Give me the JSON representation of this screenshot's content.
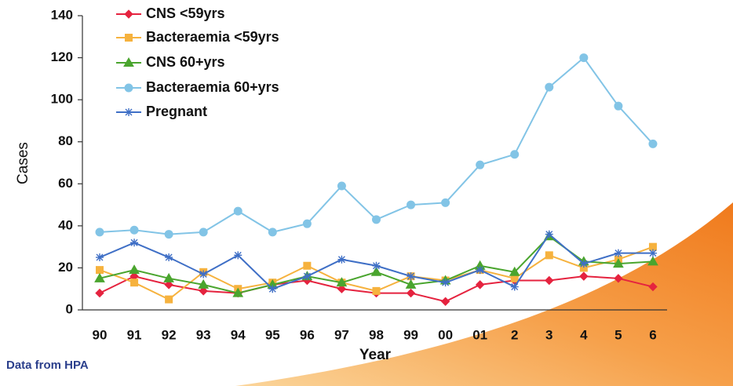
{
  "chart_data": {
    "type": "line",
    "note": "Data from HPA",
    "x_label": "Year",
    "y_label": "Cases",
    "categories": [
      "90",
      "91",
      "92",
      "93",
      "94",
      "95",
      "96",
      "97",
      "98",
      "99",
      "00",
      "01",
      "2",
      "3",
      "4",
      "5",
      "6"
    ],
    "ylim": [
      0,
      140
    ],
    "yticks": [
      0,
      20,
      40,
      60,
      80,
      100,
      120,
      140
    ],
    "legend": "top-left",
    "series": [
      {
        "name": "CNS <59yrs",
        "color": "#e5233f",
        "marker": "diamond",
        "values": [
          8,
          16,
          12,
          9,
          8,
          12,
          14,
          10,
          8,
          8,
          4,
          12,
          14,
          14,
          16,
          15,
          11
        ]
      },
      {
        "name": "Bacteraemia <59yrs",
        "color": "#f6b23e",
        "marker": "square",
        "values": [
          19,
          13,
          5,
          18,
          10,
          13,
          21,
          13,
          9,
          16,
          14,
          19,
          15,
          26,
          20,
          24,
          30
        ]
      },
      {
        "name": "CNS 60+yrs",
        "color": "#4aa52e",
        "marker": "triangle",
        "values": [
          15,
          19,
          15,
          12,
          8,
          12,
          16,
          13,
          18,
          12,
          14,
          21,
          18,
          35,
          23,
          22,
          23
        ]
      },
      {
        "name": "Bacteraemia 60+yrs",
        "color": "#82c4e6",
        "marker": "circle",
        "values": [
          37,
          38,
          36,
          37,
          47,
          37,
          41,
          59,
          43,
          50,
          51,
          69,
          74,
          106,
          120,
          97,
          79
        ]
      },
      {
        "name": "Pregnant",
        "color": "#3f6fc6",
        "marker": "star",
        "values": [
          25,
          32,
          25,
          17,
          26,
          10,
          16,
          24,
          21,
          16,
          13,
          19,
          11,
          36,
          22,
          27,
          27
        ]
      }
    ]
  }
}
